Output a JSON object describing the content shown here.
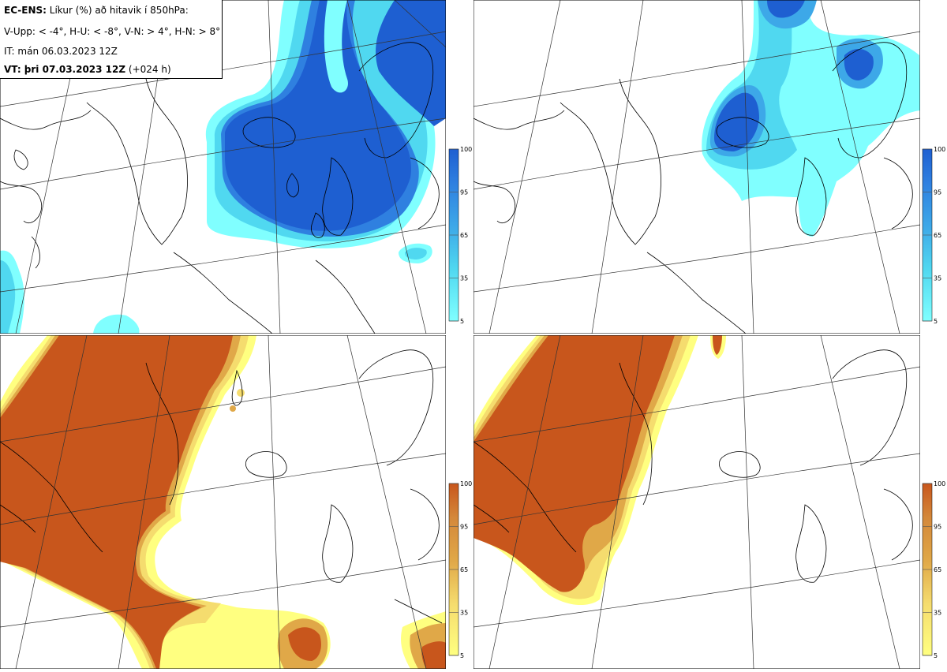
{
  "header": {
    "model_label": "EC-ENS:",
    "description": "Líkur (%) að hitavik í 850hPa:",
    "panel_codes": "V-Upp: < -4°, H-U: < -8°, V-N: > 4°, H-N: > 8°",
    "initial_time": "IT: mán 06.03.2023 12Z",
    "valid_label": "VT: þri 07.03.2023 12Z",
    "lead_time": "(+024 h)"
  },
  "panels": [
    {
      "code": "V-Upp",
      "variable": "probability anomaly < -4°",
      "palette": "blue",
      "colorbar_ticks": [
        "100",
        "95",
        "65",
        "35",
        "5"
      ]
    },
    {
      "code": "H-U",
      "variable": "probability anomaly < -8°",
      "palette": "blue",
      "colorbar_ticks": [
        "100",
        "95",
        "65",
        "35",
        "5"
      ]
    },
    {
      "code": "V-N",
      "variable": "probability anomaly > 4°",
      "palette": "orange",
      "colorbar_ticks": [
        "100",
        "95",
        "65",
        "35",
        "5"
      ]
    },
    {
      "code": "H-N",
      "variable": "probability anomaly > 8°",
      "palette": "orange",
      "colorbar_ticks": [
        "100",
        "95",
        "65",
        "35",
        "5"
      ]
    }
  ],
  "palettes": {
    "blue": [
      "#80ffff",
      "#50d8f0",
      "#3da8e8",
      "#2f80e0",
      "#1e5fd1"
    ],
    "orange": [
      "#ffff80",
      "#f5dc6e",
      "#e0a848",
      "#d4883a",
      "#c8561c"
    ]
  }
}
